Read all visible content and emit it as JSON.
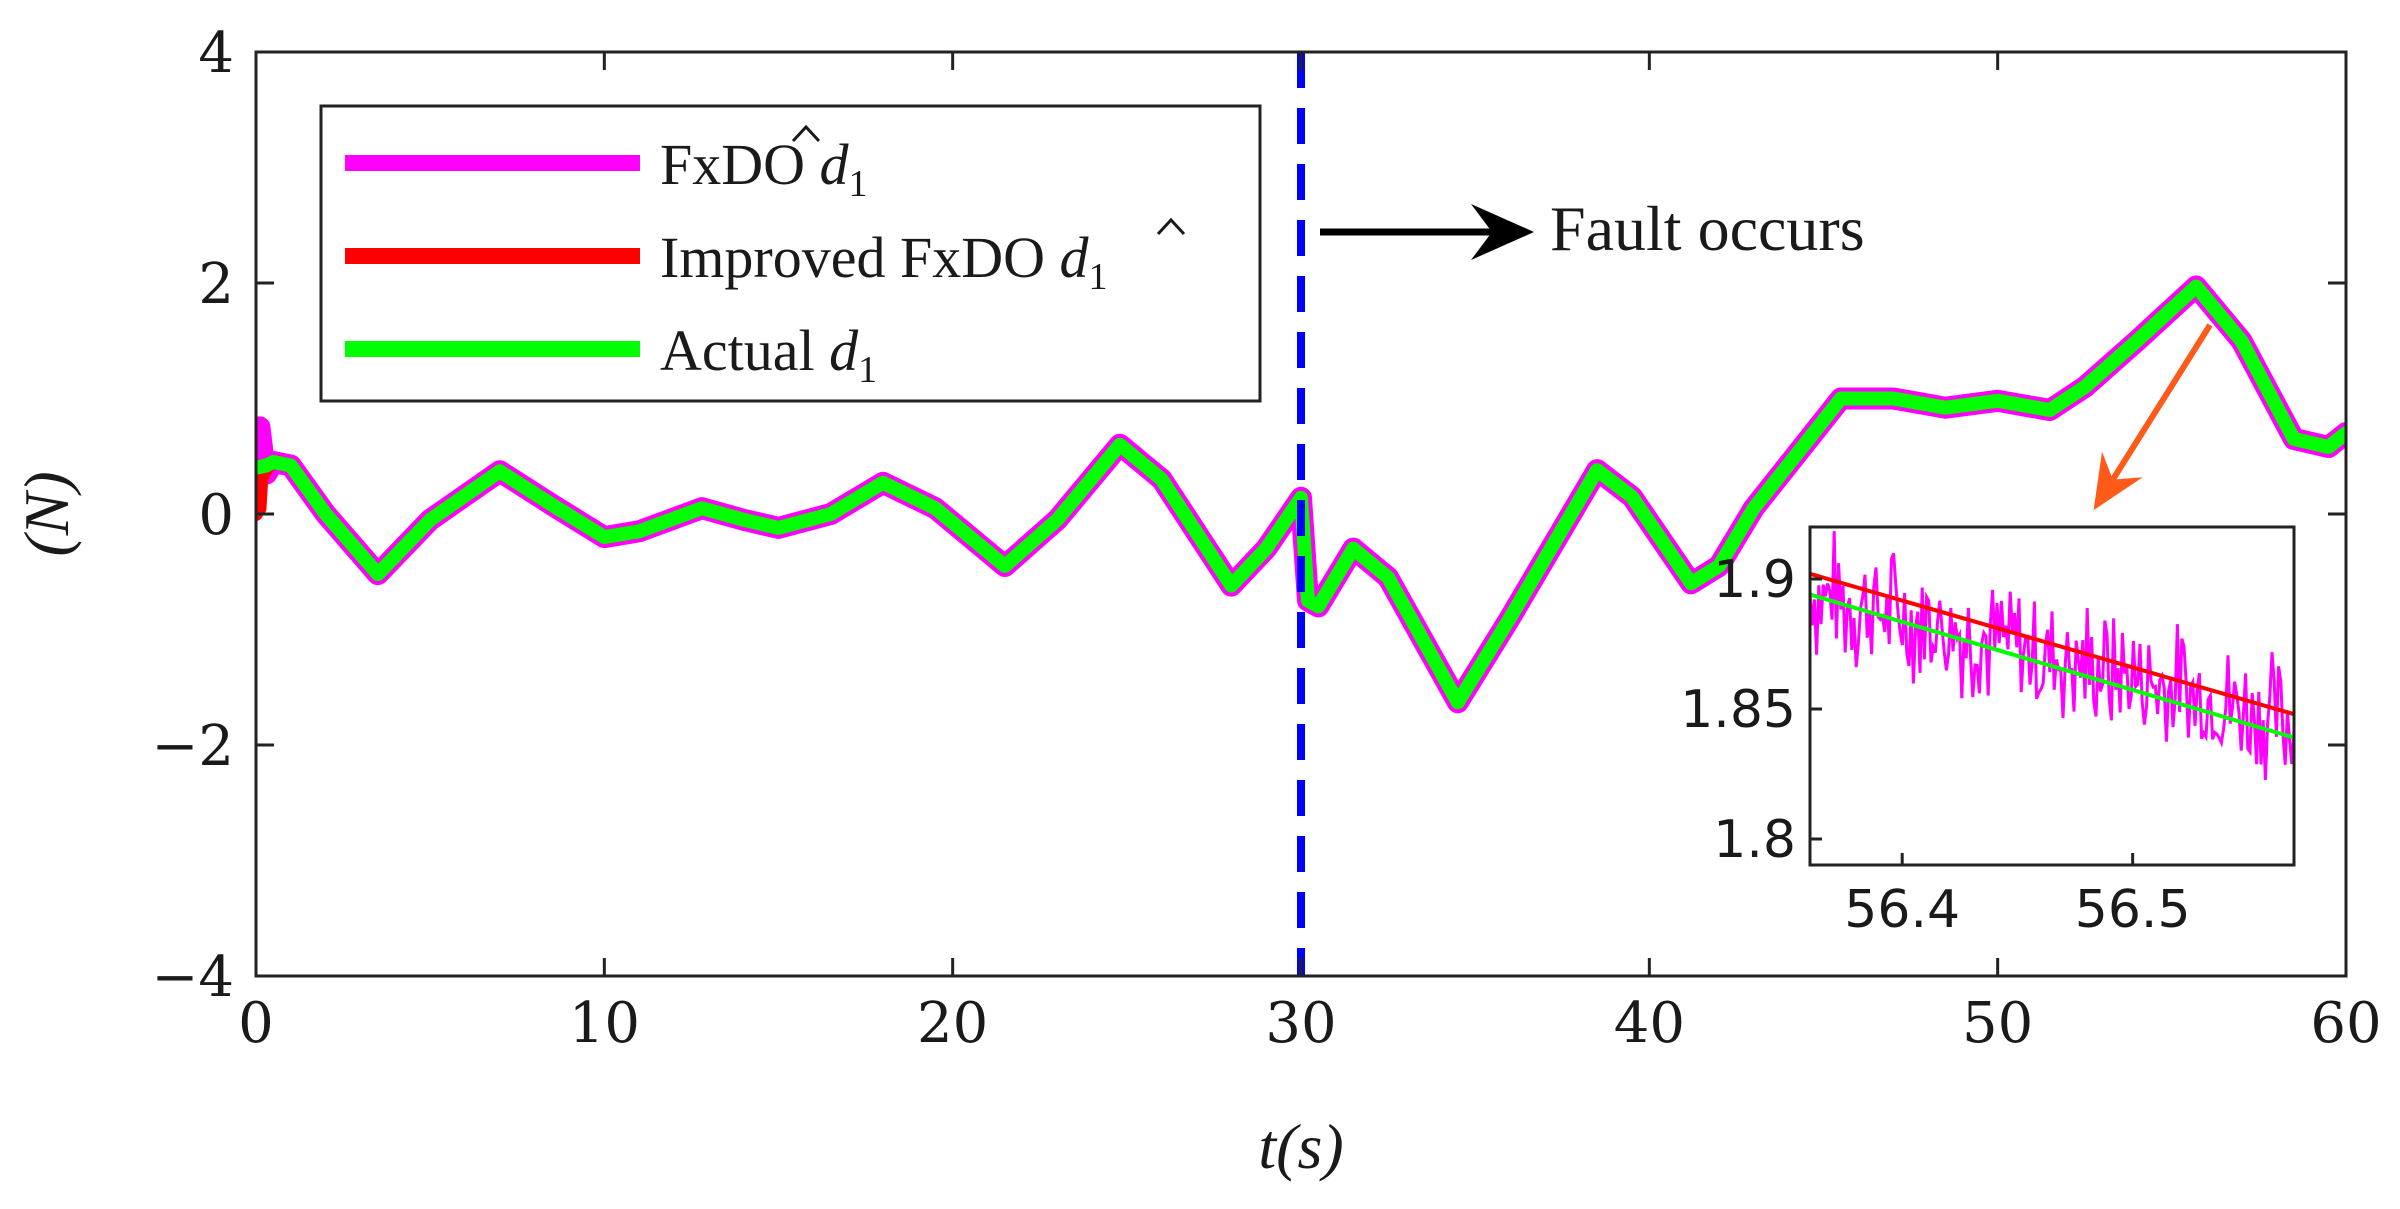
{
  "chart_data": {
    "type": "line",
    "title": "",
    "xlabel": "t(s)",
    "ylabel": "(N)",
    "xlim": [
      0,
      60
    ],
    "ylim": [
      -4,
      4
    ],
    "xticks": [
      "0",
      "10",
      "20",
      "30",
      "40",
      "50",
      "60"
    ],
    "yticks": [
      "4",
      "2",
      "0",
      "−2",
      "−4"
    ],
    "grid": false,
    "legend_position": "top-left",
    "series": [
      {
        "name": "FxDO d̂1",
        "legend_parts": {
          "prefix": "FxDO ",
          "symbol": "d",
          "sub": "1"
        },
        "color": "#ff00ff",
        "x": [
          0,
          0.1,
          0.2,
          0.3,
          0.5,
          1,
          2,
          3.5,
          5,
          7,
          8.5,
          10,
          11,
          12.8,
          14,
          15,
          16.5,
          18,
          19.5,
          21.5,
          23,
          24.8,
          26,
          28,
          29,
          30,
          30.2,
          30.5,
          31.5,
          32.5,
          34.5,
          36,
          38.5,
          39.5,
          41.2,
          42,
          43,
          45.5,
          47,
          48.5,
          50,
          51.5,
          52.5,
          54,
          55.7,
          57,
          58.5,
          59.5,
          60
        ],
        "y": [
          0.3,
          0.75,
          0.5,
          0.35,
          0.45,
          0.42,
          0.0,
          -0.52,
          -0.05,
          0.37,
          0.08,
          -0.2,
          -0.15,
          0.05,
          -0.05,
          -0.12,
          0.0,
          0.27,
          0.05,
          -0.45,
          -0.05,
          0.6,
          0.3,
          -0.62,
          -0.3,
          0.14,
          -0.75,
          -0.8,
          -0.3,
          -0.55,
          -1.63,
          -0.9,
          0.38,
          0.15,
          -0.6,
          -0.45,
          0.05,
          1.0,
          1.0,
          0.92,
          0.98,
          0.9,
          1.1,
          1.5,
          1.97,
          1.5,
          0.65,
          0.58,
          0.7
        ]
      },
      {
        "name": "Improved FxDO d̂1",
        "legend_parts": {
          "prefix": "Improved FxDO ",
          "symbol": "d",
          "sub": "1"
        },
        "color": "#ff0000",
        "x": [
          0,
          0.05,
          0.1,
          0.15,
          0.3,
          0.5,
          1,
          2,
          3.5,
          5,
          7,
          8.5,
          10,
          11,
          12.8,
          14,
          15,
          16.5,
          18,
          19.5,
          21.5,
          23,
          24.8,
          26,
          28,
          29,
          30,
          30.2,
          30.5,
          31.5,
          32.5,
          34.5,
          36,
          38.5,
          39.5,
          41.2,
          42,
          43,
          45.5,
          47,
          48.5,
          50,
          51.5,
          52.5,
          54,
          55.7,
          57,
          58.5,
          59.5,
          60
        ],
        "y": [
          0.0,
          0.3,
          0.05,
          0.3,
          0.4,
          0.45,
          0.42,
          0.0,
          -0.52,
          -0.05,
          0.37,
          0.08,
          -0.2,
          -0.15,
          0.05,
          -0.05,
          -0.12,
          0.0,
          0.27,
          0.05,
          -0.45,
          -0.05,
          0.6,
          0.3,
          -0.62,
          -0.3,
          0.14,
          -0.75,
          -0.8,
          -0.3,
          -0.55,
          -1.63,
          -0.9,
          0.38,
          0.15,
          -0.6,
          -0.45,
          0.05,
          1.0,
          1.0,
          0.92,
          0.98,
          0.9,
          1.1,
          1.5,
          1.97,
          1.5,
          0.65,
          0.58,
          0.7
        ]
      },
      {
        "name": "Actual d1",
        "legend_parts": {
          "prefix": "Actual ",
          "symbol": "d",
          "sub": "1"
        },
        "color": "#00ff00",
        "x": [
          0,
          0.3,
          0.5,
          1,
          2,
          3.5,
          5,
          7,
          8.5,
          10,
          11,
          12.8,
          14,
          15,
          16.5,
          18,
          19.5,
          21.5,
          23,
          24.8,
          26,
          28,
          29,
          30,
          30.2,
          30.5,
          31.5,
          32.5,
          34.5,
          36,
          38.5,
          39.5,
          41.2,
          42,
          43,
          45.5,
          47,
          48.5,
          50,
          51.5,
          52.5,
          54,
          55.7,
          57,
          58.5,
          59.5,
          60
        ],
        "y": [
          0.4,
          0.42,
          0.45,
          0.42,
          0.0,
          -0.52,
          -0.05,
          0.37,
          0.08,
          -0.2,
          -0.15,
          0.05,
          -0.05,
          -0.12,
          0.0,
          0.27,
          0.05,
          -0.45,
          -0.05,
          0.6,
          0.3,
          -0.62,
          -0.3,
          0.14,
          -0.75,
          -0.8,
          -0.3,
          -0.55,
          -1.63,
          -0.9,
          0.38,
          0.15,
          -0.6,
          -0.45,
          0.05,
          1.0,
          1.0,
          0.92,
          0.98,
          0.9,
          1.1,
          1.5,
          1.97,
          1.5,
          0.65,
          0.58,
          0.7
        ]
      }
    ],
    "fault_line": {
      "x": 30,
      "color": "#0000ff",
      "style": "dashed"
    },
    "annotations": [
      {
        "text": "Fault occurs",
        "color": "#000000"
      }
    ],
    "inset": {
      "xlim": [
        56.36,
        56.57
      ],
      "ylim": [
        1.79,
        1.92
      ],
      "xticks": [
        "56.4",
        "56.5"
      ],
      "xtick_values": [
        56.4,
        56.5
      ],
      "yticks": [
        "1.9",
        "1.85",
        "1.8"
      ],
      "ytick_values": [
        1.9,
        1.85,
        1.8
      ],
      "arrow_color": "#ff5a1a",
      "improved_line": {
        "x": [
          56.36,
          56.57
        ],
        "y": [
          1.902,
          1.848
        ],
        "color": "#ff0000"
      },
      "actual_line": {
        "x": [
          56.36,
          56.57
        ],
        "y": [
          1.894,
          1.839
        ],
        "color": "#00ff00"
      },
      "fxdo_noise": {
        "x_start": 56.36,
        "x_end": 56.57,
        "y_start": 1.895,
        "y_end": 1.845,
        "amplitude": 0.03,
        "color": "#ff00ff"
      }
    }
  }
}
